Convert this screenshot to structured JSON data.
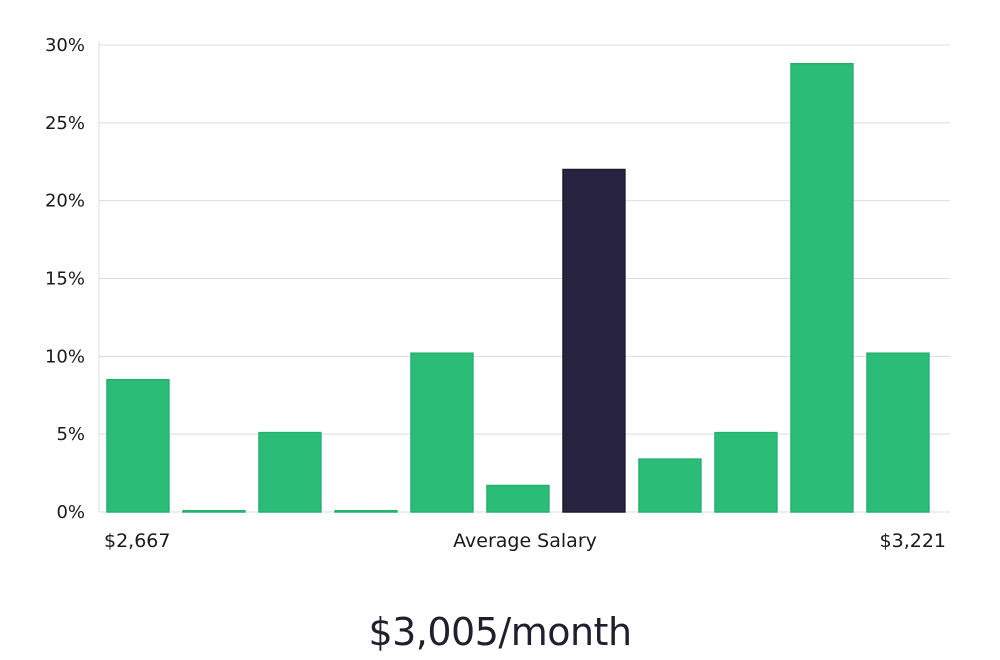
{
  "chart_data": {
    "type": "bar",
    "values": [
      8.5,
      0.05,
      5.1,
      0.05,
      10.2,
      1.7,
      22.0,
      3.4,
      5.1,
      28.8,
      10.2
    ],
    "highlight_index": 6,
    "ylim": [
      0,
      30
    ],
    "yticks": [
      0,
      5,
      10,
      15,
      20,
      25,
      30
    ],
    "ytick_labels": [
      "0%",
      "5%",
      "10%",
      "15%",
      "20%",
      "25%",
      "30%"
    ],
    "x_min_label": "$2,667",
    "x_center_label": "Average Salary",
    "x_max_label": "$3,221",
    "grid": true,
    "colors": {
      "bar": "#2bbd77",
      "highlight": "#28243f",
      "grid": "#dcdcdc"
    }
  },
  "summary": {
    "average": "$3,005/month"
  }
}
